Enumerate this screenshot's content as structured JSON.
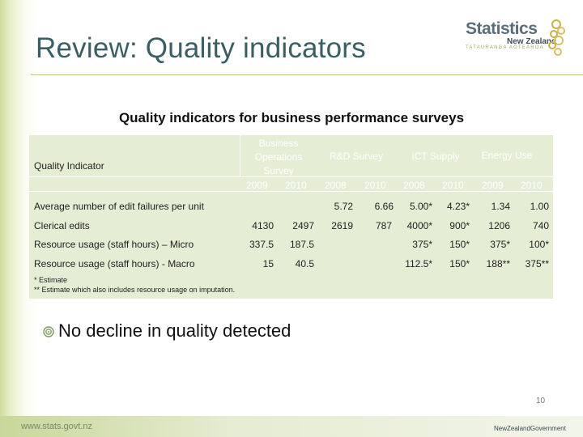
{
  "slide": {
    "title": "Review: Quality indicators",
    "subtitle": "Quality indicators for business performance surveys",
    "bullet": "No decline in quality detected",
    "page_number": "10",
    "footer_url": "www.stats.govt.nz",
    "footer_brand": "NewZealandGovernment"
  },
  "logo": {
    "line1": "Statistics",
    "line2": "New Zealand",
    "line3": "TATAURANGA AOTEAROA"
  },
  "table": {
    "header": {
      "indicator": "Quality Indicator",
      "groups": [
        "Business Operations Survey",
        "R&D Survey",
        "ICT Supply",
        "Energy Use"
      ],
      "years": [
        "2009",
        "2010",
        "2008",
        "2010",
        "2008",
        "2010",
        "2009",
        "2010"
      ]
    },
    "rows": [
      {
        "label": "Average number of edit failures per unit",
        "values": [
          "",
          "",
          "5.72",
          "6.66",
          "5.00*",
          "4.23*",
          "1.34",
          "1.00"
        ]
      },
      {
        "label": "Clerical edits",
        "values": [
          "4130",
          "2497",
          "2619",
          "787",
          "4000*",
          "900*",
          "1206",
          "740"
        ]
      },
      {
        "label": "Resource usage (staff hours) – Micro",
        "values": [
          "337.5",
          "187.5",
          "",
          "",
          "375*",
          "150*",
          "375*",
          "100*"
        ]
      },
      {
        "label": "Resource usage (staff hours) - Macro",
        "values": [
          "15",
          "40.5",
          "",
          "",
          "112.5*",
          "150*",
          "188**",
          "375**"
        ]
      }
    ],
    "footnotes": [
      "* Estimate",
      "** Estimate which also includes resource usage on imputation."
    ]
  }
}
